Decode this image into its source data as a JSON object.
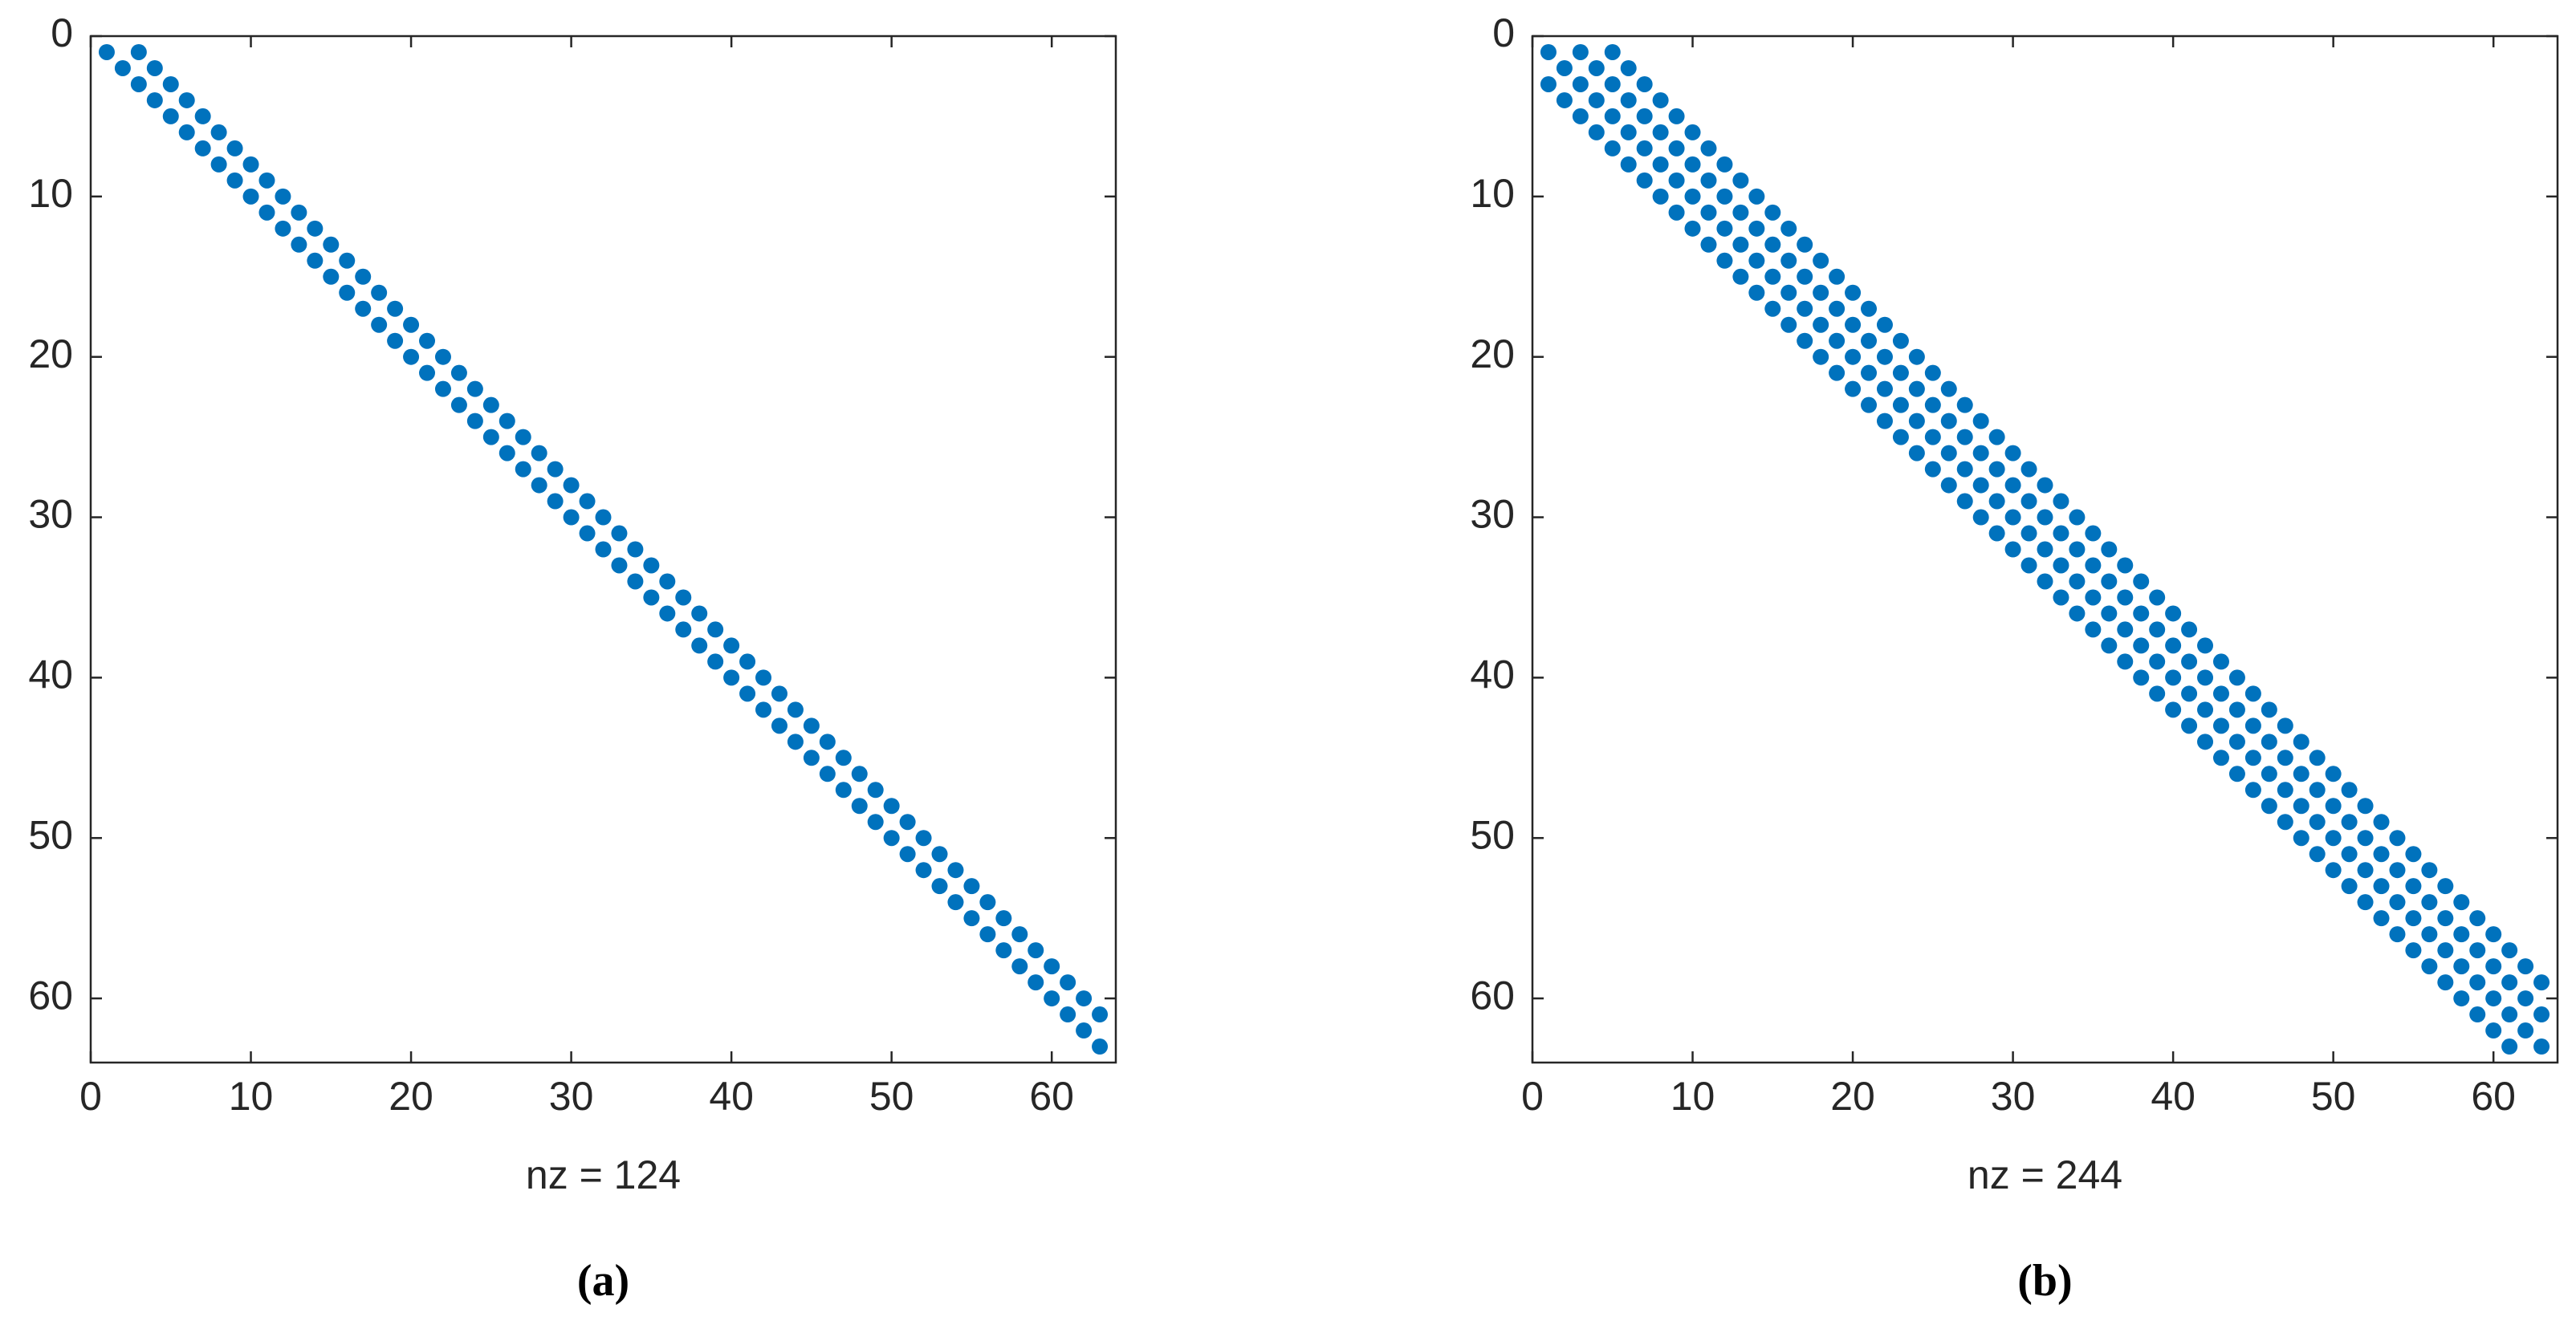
{
  "chart_data": [
    {
      "type": "scatter",
      "xlabel": "nz = 124",
      "caption": "(a)",
      "color": "#0072bd",
      "xlim": [
        0,
        64
      ],
      "ylim": [
        0,
        64
      ],
      "y_inverted": true,
      "xticks": [
        0,
        10,
        20,
        30,
        40,
        50,
        60
      ],
      "yticks": [
        0,
        10,
        20,
        30,
        40,
        50,
        60
      ],
      "x": [
        1,
        2,
        3,
        4,
        5,
        6,
        7,
        8,
        9,
        10,
        11,
        12,
        13,
        14,
        15,
        16,
        17,
        18,
        19,
        20,
        21,
        22,
        23,
        24,
        25,
        26,
        27,
        28,
        29,
        30,
        31,
        32,
        33,
        34,
        35,
        36,
        37,
        38,
        39,
        40,
        41,
        42,
        43,
        44,
        45,
        46,
        47,
        48,
        49,
        50,
        51,
        52,
        53,
        54,
        55,
        56,
        57,
        58,
        59,
        60,
        61,
        62,
        63,
        3,
        4,
        5,
        6,
        7,
        8,
        9,
        10,
        11,
        12,
        13,
        14,
        15,
        16,
        17,
        18,
        19,
        20,
        21,
        22,
        23,
        24,
        25,
        26,
        27,
        28,
        29,
        30,
        31,
        32,
        33,
        34,
        35,
        36,
        37,
        38,
        39,
        40,
        41,
        42,
        43,
        44,
        45,
        46,
        47,
        48,
        49,
        50,
        51,
        52,
        53,
        54,
        55,
        56,
        57,
        58,
        59,
        60,
        61,
        62,
        63
      ],
      "y": [
        1,
        2,
        3,
        4,
        5,
        6,
        7,
        8,
        9,
        10,
        11,
        12,
        13,
        14,
        15,
        16,
        17,
        18,
        19,
        20,
        21,
        22,
        23,
        24,
        25,
        26,
        27,
        28,
        29,
        30,
        31,
        32,
        33,
        34,
        35,
        36,
        37,
        38,
        39,
        40,
        41,
        42,
        43,
        44,
        45,
        46,
        47,
        48,
        49,
        50,
        51,
        52,
        53,
        54,
        55,
        56,
        57,
        58,
        59,
        60,
        61,
        62,
        63,
        1,
        2,
        3,
        4,
        5,
        6,
        7,
        8,
        9,
        10,
        11,
        12,
        13,
        14,
        15,
        16,
        17,
        18,
        19,
        20,
        21,
        22,
        23,
        24,
        25,
        26,
        27,
        28,
        29,
        30,
        31,
        32,
        33,
        34,
        35,
        36,
        37,
        38,
        39,
        40,
        41,
        42,
        43,
        44,
        45,
        46,
        47,
        48,
        49,
        50,
        51,
        52,
        53,
        54,
        55,
        56,
        57,
        58,
        59,
        60,
        61
      ]
    },
    {
      "type": "scatter",
      "xlabel": "nz = 244",
      "caption": "(b)",
      "color": "#0072bd",
      "xlim": [
        0,
        64
      ],
      "ylim": [
        0,
        64
      ],
      "y_inverted": true,
      "xticks": [
        0,
        10,
        20,
        30,
        40,
        50,
        60
      ],
      "yticks": [
        0,
        10,
        20,
        30,
        40,
        50,
        60
      ],
      "x": [
        1,
        2,
        3,
        4,
        5,
        6,
        7,
        8,
        9,
        10,
        11,
        12,
        13,
        14,
        15,
        16,
        17,
        18,
        19,
        20,
        21,
        22,
        23,
        24,
        25,
        26,
        27,
        28,
        29,
        30,
        31,
        32,
        33,
        34,
        35,
        36,
        37,
        38,
        39,
        40,
        41,
        42,
        43,
        44,
        45,
        46,
        47,
        48,
        49,
        50,
        51,
        52,
        53,
        54,
        55,
        56,
        57,
        58,
        59,
        60,
        61,
        62,
        63,
        3,
        4,
        5,
        6,
        7,
        8,
        9,
        10,
        11,
        12,
        13,
        14,
        15,
        16,
        17,
        18,
        19,
        20,
        21,
        22,
        23,
        24,
        25,
        26,
        27,
        28,
        29,
        30,
        31,
        32,
        33,
        34,
        35,
        36,
        37,
        38,
        39,
        40,
        41,
        42,
        43,
        44,
        45,
        46,
        47,
        48,
        49,
        50,
        51,
        52,
        53,
        54,
        55,
        56,
        57,
        58,
        59,
        60,
        61,
        62,
        63,
        5,
        6,
        7,
        8,
        9,
        10,
        11,
        12,
        13,
        14,
        15,
        16,
        17,
        18,
        19,
        20,
        21,
        22,
        23,
        24,
        25,
        26,
        27,
        28,
        29,
        30,
        31,
        32,
        33,
        34,
        35,
        36,
        37,
        38,
        39,
        40,
        41,
        42,
        43,
        44,
        45,
        46,
        47,
        48,
        49,
        50,
        51,
        52,
        53,
        54,
        55,
        56,
        57,
        58,
        59,
        60,
        61,
        62,
        63,
        1,
        2,
        3,
        4,
        5,
        6,
        7,
        8,
        9,
        10,
        11,
        12,
        13,
        14,
        15,
        16,
        17,
        18,
        19,
        20,
        21,
        22,
        23,
        24,
        25,
        26,
        27,
        28,
        29,
        30,
        31,
        32,
        33,
        34,
        35,
        36,
        37,
        38,
        39,
        40,
        41,
        42,
        43,
        44,
        45,
        46,
        47,
        48,
        49,
        50,
        51,
        52,
        53,
        54,
        55,
        56,
        57,
        58,
        59,
        60,
        61
      ],
      "y": [
        1,
        2,
        3,
        4,
        5,
        6,
        7,
        8,
        9,
        10,
        11,
        12,
        13,
        14,
        15,
        16,
        17,
        18,
        19,
        20,
        21,
        22,
        23,
        24,
        25,
        26,
        27,
        28,
        29,
        30,
        31,
        32,
        33,
        34,
        35,
        36,
        37,
        38,
        39,
        40,
        41,
        42,
        43,
        44,
        45,
        46,
        47,
        48,
        49,
        50,
        51,
        52,
        53,
        54,
        55,
        56,
        57,
        58,
        59,
        60,
        61,
        62,
        63,
        1,
        2,
        3,
        4,
        5,
        6,
        7,
        8,
        9,
        10,
        11,
        12,
        13,
        14,
        15,
        16,
        17,
        18,
        19,
        20,
        21,
        22,
        23,
        24,
        25,
        26,
        27,
        28,
        29,
        30,
        31,
        32,
        33,
        34,
        35,
        36,
        37,
        38,
        39,
        40,
        41,
        42,
        43,
        44,
        45,
        46,
        47,
        48,
        49,
        50,
        51,
        52,
        53,
        54,
        55,
        56,
        57,
        58,
        59,
        60,
        61,
        1,
        2,
        3,
        4,
        5,
        6,
        7,
        8,
        9,
        10,
        11,
        12,
        13,
        14,
        15,
        16,
        17,
        18,
        19,
        20,
        21,
        22,
        23,
        24,
        25,
        26,
        27,
        28,
        29,
        30,
        31,
        32,
        33,
        34,
        35,
        36,
        37,
        38,
        39,
        40,
        41,
        42,
        43,
        44,
        45,
        46,
        47,
        48,
        49,
        50,
        51,
        52,
        53,
        54,
        55,
        56,
        57,
        58,
        59,
        3,
        4,
        5,
        6,
        7,
        8,
        9,
        10,
        11,
        12,
        13,
        14,
        15,
        16,
        17,
        18,
        19,
        20,
        21,
        22,
        23,
        24,
        25,
        26,
        27,
        28,
        29,
        30,
        31,
        32,
        33,
        34,
        35,
        36,
        37,
        38,
        39,
        40,
        41,
        42,
        43,
        44,
        45,
        46,
        47,
        48,
        49,
        50,
        51,
        52,
        53,
        54,
        55,
        56,
        57,
        58,
        59,
        60,
        61,
        62,
        63
      ]
    }
  ]
}
